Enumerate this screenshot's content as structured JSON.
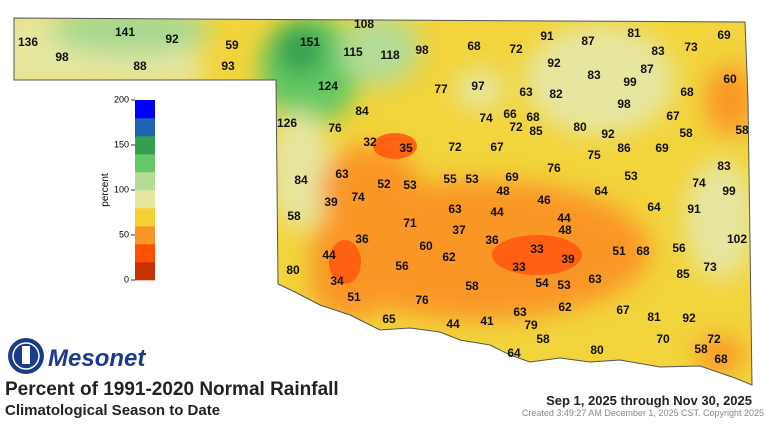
{
  "logo": "Mesonet",
  "title": "Percent of 1991-2020 Normal Rainfall",
  "subtitle": "Climatological Season to Date",
  "date_range": "Sep 1, 2025 through Nov 30, 2025",
  "created": "Created 3:49:27 AM December 1, 2025 CST. Copyright 2025",
  "legend": {
    "label": "percent",
    "range": [
      0,
      200
    ],
    "ticks": [
      0,
      50,
      100,
      150,
      200
    ],
    "colors": [
      "#c83200",
      "#ff5000",
      "#fa9628",
      "#f5d232",
      "#e6e6a0",
      "#b4dc96",
      "#64c864",
      "#32a050",
      "#1e64b4",
      "#0000ff"
    ]
  },
  "stations": [
    136,
    98,
    141,
    92,
    88,
    59,
    93,
    151,
    108,
    115,
    118,
    98,
    68,
    72,
    91,
    87,
    81,
    83,
    73,
    69,
    92,
    83,
    87,
    124,
    84,
    77,
    97,
    63,
    82,
    99,
    60,
    68,
    98,
    126,
    76,
    74,
    66,
    68,
    72,
    85,
    80,
    67,
    58,
    58,
    32,
    35,
    72,
    67,
    92,
    86,
    69,
    75,
    76,
    83,
    84,
    63,
    52,
    53,
    55,
    53,
    69,
    48,
    53,
    74,
    99,
    58,
    39,
    74,
    46,
    64,
    63,
    44,
    44,
    64,
    91,
    71,
    37,
    48,
    36,
    60,
    36,
    33,
    102,
    44,
    62,
    39,
    51,
    68,
    56,
    80,
    56,
    33,
    73,
    85,
    34,
    58,
    54,
    53,
    63,
    51,
    76,
    63,
    62,
    67,
    65,
    44,
    41,
    79,
    81,
    92,
    58,
    70,
    72,
    80,
    64,
    58,
    68
  ]
}
